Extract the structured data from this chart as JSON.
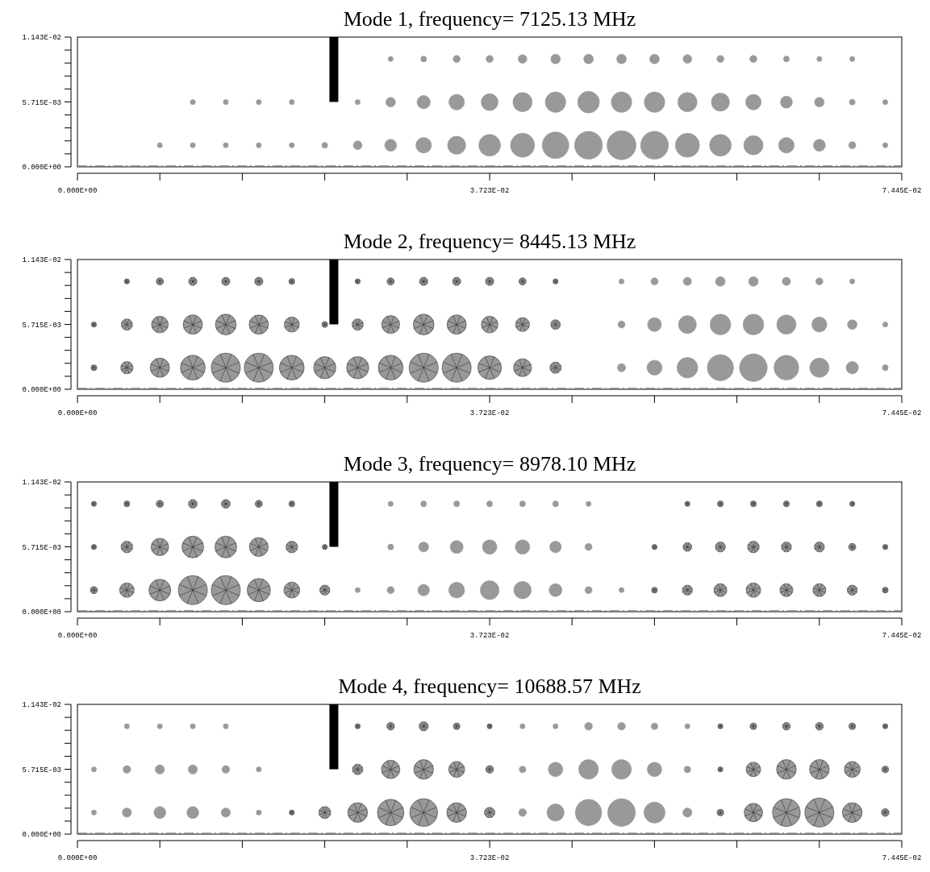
{
  "chart_data": [
    {
      "type": "bubble",
      "title": "Mode 1, frequency= 7125.13 MHz",
      "x": [
        0.007445,
        0.01042,
        0.0134,
        0.01638,
        0.01936,
        0.02234,
        0.02531,
        0.02829,
        0.03127,
        0.03425,
        0.03723,
        0.0402,
        0.04318,
        0.04616,
        0.04914,
        0.05212,
        0.05509,
        0.05807,
        0.06105,
        0.06403,
        0.06701,
        0.06998,
        0.07296
      ],
      "xlim": [
        0,
        0.07445
      ],
      "ylim": [
        0,
        0.01143
      ],
      "xticks": [
        {
          "value": 0,
          "label": "0.000E+00"
        },
        {
          "value": 0.007445,
          "label": null
        },
        {
          "value": 0.01489,
          "label": null
        },
        {
          "value": 0.022335,
          "label": null
        },
        {
          "value": 0.02978,
          "label": null
        },
        {
          "value": 0.03723,
          "label": "3.723E-02"
        },
        {
          "value": 0.04467,
          "label": null
        },
        {
          "value": 0.052115,
          "label": null
        },
        {
          "value": 0.05956,
          "label": null
        },
        {
          "value": 0.067005,
          "label": null
        },
        {
          "value": 0.07445,
          "label": "7.445E-02"
        }
      ],
      "yticks": [
        {
          "value": 0,
          "label": "0.000E+00"
        },
        {
          "value": 0.001143,
          "label": null
        },
        {
          "value": 0.002286,
          "label": null
        },
        {
          "value": 0.003429,
          "label": null
        },
        {
          "value": 0.004572,
          "label": null
        },
        {
          "value": 0.005715,
          "label": "5.715E-03"
        },
        {
          "value": 0.006858,
          "label": null
        },
        {
          "value": 0.008001,
          "label": null
        },
        {
          "value": 0.009144,
          "label": null
        },
        {
          "value": 0.010287,
          "label": null
        },
        {
          "value": 0.01143,
          "label": "1.143E-02"
        }
      ],
      "ref_lines": [
        {
          "axis": "y",
          "value": 0,
          "color": "#808080",
          "line_style": "dashed"
        }
      ],
      "series": [
        {
          "color": "#999999",
          "marker": "circle",
          "values": [
            0.0019,
            0.0019,
            0.0019,
            0.0019,
            0.0019,
            0.0019,
            0.0019,
            0.0019,
            0.0019,
            0.0019,
            0.0019,
            0.0019,
            0.0019,
            0.0019,
            0.0019,
            0.0019,
            0.0019,
            0.0019,
            0.0019,
            0.0019,
            0.0019,
            0.0019,
            0.0019
          ],
          "sizes": [
            0.03,
            0.03,
            0.03,
            0.03,
            0.03,
            0.04,
            0.09,
            0.17,
            0.29,
            0.39,
            0.56,
            0.69,
            0.84,
            0.92,
            1,
            0.92,
            0.69,
            0.56,
            0.44,
            0.29,
            0.17,
            0.06,
            0.03
          ]
        },
        {
          "color": "#999999",
          "marker": "circle",
          "values": [
            null,
            0.0057,
            0.0057,
            0.0057,
            0.0057,
            null,
            0.0057,
            0.0057,
            0.0057,
            0.0057,
            0.0057,
            0.0057,
            0.0057,
            0.0057,
            0.0057,
            0.0057,
            0.0057,
            0.0057,
            0.0057,
            0.0057,
            0.0057,
            0.0057,
            0.0057
          ],
          "sizes": [
            null,
            0.03,
            0.03,
            0.03,
            0.03,
            null,
            0.03,
            0.11,
            0.21,
            0.29,
            0.34,
            0.44,
            0.5,
            0.56,
            0.5,
            0.5,
            0.44,
            0.39,
            0.29,
            0.17,
            0.11,
            0.04,
            0.03
          ]
        },
        {
          "color": "#999999",
          "marker": "circle",
          "values": [
            null,
            null,
            null,
            null,
            null,
            null,
            null,
            0.0095,
            0.0095,
            0.0095,
            0.0095,
            0.0095,
            0.0095,
            0.0095,
            0.0095,
            0.0095,
            0.0095,
            0.0095,
            0.0095,
            0.0095,
            0.0095,
            0.0095,
            null
          ],
          "sizes": [
            null,
            null,
            null,
            null,
            null,
            null,
            null,
            0.03,
            0.04,
            0.06,
            0.06,
            0.09,
            0.11,
            0.11,
            0.11,
            0.11,
            0.09,
            0.06,
            0.06,
            0.04,
            0.03,
            0.03,
            null
          ]
        }
      ]
    },
    {
      "type": "bubble",
      "title": "Mode 2, frequency= 8445.13 MHz",
      "x": [
        0.001489,
        0.004467,
        0.007445,
        0.01042,
        0.0134,
        0.01638,
        0.01936,
        0.02234,
        0.02531,
        0.02829,
        0.03127,
        0.03425,
        0.03723,
        0.0402,
        0.04318,
        0.04914,
        0.05212,
        0.05509,
        0.05807,
        0.06105,
        0.06403,
        0.06701,
        0.06998,
        0.07296
      ],
      "xlim": [
        0,
        0.07445
      ],
      "ylim": [
        0,
        0.01143
      ],
      "xticks": [
        {
          "value": 0,
          "label": "0.000E+00"
        },
        {
          "value": 0.007445,
          "label": null
        },
        {
          "value": 0.01489,
          "label": null
        },
        {
          "value": 0.022335,
          "label": null
        },
        {
          "value": 0.02978,
          "label": null
        },
        {
          "value": 0.03723,
          "label": "3.723E-02"
        },
        {
          "value": 0.04467,
          "label": null
        },
        {
          "value": 0.052115,
          "label": null
        },
        {
          "value": 0.05956,
          "label": null
        },
        {
          "value": 0.067005,
          "label": null
        },
        {
          "value": 0.07445,
          "label": "7.445E-02"
        }
      ],
      "yticks": [
        {
          "value": 0,
          "label": "0.000E+00"
        },
        {
          "value": 0.001143,
          "label": null
        },
        {
          "value": 0.002286,
          "label": null
        },
        {
          "value": 0.003429,
          "label": null
        },
        {
          "value": 0.004572,
          "label": null
        },
        {
          "value": 0.005715,
          "label": "5.715E-03"
        },
        {
          "value": 0.006858,
          "label": null
        },
        {
          "value": 0.008001,
          "label": null
        },
        {
          "value": 0.009144,
          "label": null
        },
        {
          "value": 0.010287,
          "label": null
        },
        {
          "value": 0.01143,
          "label": "1.143E-02"
        }
      ],
      "ref_lines": [
        {
          "axis": "y",
          "value": 0,
          "color": "#808080",
          "line_style": "dashed"
        }
      ],
      "series": [
        {
          "color": "#999999",
          "marker": "cross",
          "values": [
            0.0019,
            0.0019,
            0.0019,
            0.0019,
            0.0019,
            0.0019,
            0.0019,
            0.0019,
            0.0019,
            0.0019,
            0.0019,
            0.0019,
            0.0019,
            0.0019,
            0.0019,
            null,
            null,
            null,
            null,
            null,
            null,
            null,
            null,
            null
          ],
          "sizes": [
            0.04,
            0.18,
            0.44,
            0.73,
            1,
            1,
            0.73,
            0.58,
            0.58,
            0.73,
            1,
            1,
            0.66,
            0.38,
            0.15,
            null,
            null,
            null,
            null,
            null,
            null,
            null,
            null,
            null
          ]
        },
        {
          "color": "#999999",
          "marker": "circle",
          "values": [
            null,
            null,
            null,
            null,
            null,
            null,
            null,
            null,
            null,
            null,
            null,
            null,
            null,
            null,
            null,
            0.0019,
            0.0019,
            0.0019,
            0.0019,
            0.0019,
            0.0019,
            0.0019,
            0.0019,
            0.0019
          ],
          "sizes": [
            null,
            null,
            null,
            null,
            null,
            null,
            null,
            null,
            null,
            null,
            null,
            null,
            null,
            null,
            null,
            0.08,
            0.27,
            0.51,
            0.82,
            0.91,
            0.73,
            0.44,
            0.18,
            0.04
          ]
        },
        {
          "color": "#999999",
          "marker": "cross",
          "values": [
            0.0057,
            0.0057,
            0.0057,
            0.0057,
            0.0057,
            0.0057,
            0.0057,
            0.0057,
            0.0057,
            0.0057,
            0.0057,
            0.0057,
            0.0057,
            0.0057,
            0.0057,
            null,
            null,
            null,
            null,
            null,
            null,
            null,
            null,
            null
          ],
          "sizes": [
            0.03,
            0.15,
            0.33,
            0.44,
            0.51,
            0.44,
            0.27,
            0.04,
            0.15,
            0.38,
            0.51,
            0.44,
            0.33,
            0.23,
            0.11,
            null,
            null,
            null,
            null,
            null,
            null,
            null,
            null,
            null
          ]
        },
        {
          "color": "#999999",
          "marker": "circle",
          "values": [
            null,
            null,
            null,
            null,
            null,
            null,
            null,
            null,
            null,
            null,
            null,
            null,
            null,
            null,
            null,
            0.0057,
            0.0057,
            0.0057,
            0.0057,
            0.0057,
            0.0057,
            0.0057,
            0.0057,
            0.0057
          ],
          "sizes": [
            null,
            null,
            null,
            null,
            null,
            null,
            null,
            null,
            null,
            null,
            null,
            null,
            null,
            null,
            null,
            0.06,
            0.23,
            0.38,
            0.51,
            0.51,
            0.44,
            0.27,
            0.11,
            0.03
          ]
        },
        {
          "color": "#999999",
          "marker": "cross",
          "values": [
            null,
            0.0095,
            0.0095,
            0.0095,
            0.0095,
            0.0095,
            0.0095,
            null,
            0.0095,
            0.0095,
            0.0095,
            0.0095,
            0.0095,
            0.0095,
            0.0095,
            null,
            null,
            null,
            null,
            null,
            null,
            null,
            null,
            null
          ],
          "sizes": [
            null,
            0.03,
            0.06,
            0.08,
            0.08,
            0.08,
            0.04,
            null,
            0.03,
            0.06,
            0.08,
            0.08,
            0.08,
            0.06,
            0.03,
            null,
            null,
            null,
            null,
            null,
            null,
            null,
            null,
            null
          ]
        },
        {
          "color": "#999999",
          "marker": "circle",
          "values": [
            null,
            null,
            null,
            null,
            null,
            null,
            null,
            null,
            null,
            null,
            null,
            null,
            null,
            null,
            null,
            0.0095,
            0.0095,
            0.0095,
            0.0095,
            0.0095,
            0.0095,
            0.0095,
            0.0095,
            null
          ],
          "sizes": [
            null,
            null,
            null,
            null,
            null,
            null,
            null,
            null,
            null,
            null,
            null,
            null,
            null,
            null,
            null,
            0.03,
            0.06,
            0.08,
            0.11,
            0.11,
            0.08,
            0.06,
            0.03,
            null
          ]
        }
      ]
    },
    {
      "type": "bubble",
      "title": "Mode 3, frequency= 8978.10 MHz",
      "x": [
        0.001489,
        0.004467,
        0.007445,
        0.01042,
        0.0134,
        0.01638,
        0.01936,
        0.02234,
        0.02531,
        0.02829,
        0.03127,
        0.03425,
        0.03723,
        0.0402,
        0.04318,
        0.04616,
        0.04914,
        0.05212,
        0.05509,
        0.05807,
        0.06105,
        0.06403,
        0.06701,
        0.06998,
        0.07296
      ],
      "xlim": [
        0,
        0.07445
      ],
      "ylim": [
        0,
        0.01143
      ],
      "xticks": [
        {
          "value": 0,
          "label": "0.000E+00"
        },
        {
          "value": 0.007445,
          "label": null
        },
        {
          "value": 0.01489,
          "label": null
        },
        {
          "value": 0.022335,
          "label": null
        },
        {
          "value": 0.02978,
          "label": null
        },
        {
          "value": 0.03723,
          "label": "3.723E-02"
        },
        {
          "value": 0.04467,
          "label": null
        },
        {
          "value": 0.052115,
          "label": null
        },
        {
          "value": 0.05956,
          "label": null
        },
        {
          "value": 0.067005,
          "label": null
        },
        {
          "value": 0.07445,
          "label": "7.445E-02"
        }
      ],
      "yticks": [
        {
          "value": 0,
          "label": "0.000E+00"
        },
        {
          "value": 0.001143,
          "label": null
        },
        {
          "value": 0.002286,
          "label": null
        },
        {
          "value": 0.003429,
          "label": null
        },
        {
          "value": 0.004572,
          "label": null
        },
        {
          "value": 0.005715,
          "label": "5.715E-03"
        },
        {
          "value": 0.006858,
          "label": null
        },
        {
          "value": 0.008001,
          "label": null
        },
        {
          "value": 0.009144,
          "label": null
        },
        {
          "value": 0.010287,
          "label": null
        },
        {
          "value": 0.01143,
          "label": "1.143E-02"
        }
      ],
      "ref_lines": [
        {
          "axis": "y",
          "value": 0,
          "color": "#808080",
          "line_style": "dashed"
        }
      ],
      "series": [
        {
          "color": "#999999",
          "marker": "cross",
          "values": [
            0.0019,
            0.0019,
            0.0019,
            0.0019,
            0.0019,
            0.0019,
            0.0019,
            0.0019,
            null,
            null,
            null,
            null,
            null,
            null,
            null,
            null,
            null,
            0.0019,
            0.0019,
            0.0019,
            0.0019,
            0.0019,
            0.0019,
            0.0019,
            0.0019
          ],
          "sizes": [
            0.06,
            0.25,
            0.56,
            1,
            1,
            0.64,
            0.3,
            0.12,
            null,
            null,
            null,
            null,
            null,
            null,
            null,
            null,
            null,
            0.04,
            0.12,
            0.2,
            0.25,
            0.2,
            0.2,
            0.12,
            0.04
          ]
        },
        {
          "color": "#999999",
          "marker": "circle",
          "values": [
            null,
            null,
            null,
            null,
            null,
            null,
            null,
            null,
            0.0019,
            0.0019,
            0.0019,
            0.0019,
            0.0019,
            0.0019,
            0.0019,
            0.0019,
            0.0019,
            null,
            null,
            null,
            null,
            null,
            null,
            null,
            null
          ],
          "sizes": [
            null,
            null,
            null,
            null,
            null,
            null,
            null,
            null,
            0.03,
            0.06,
            0.16,
            0.3,
            0.42,
            0.36,
            0.2,
            0.06,
            0.03,
            null,
            null,
            null,
            null,
            null,
            null,
            null,
            null
          ]
        },
        {
          "color": "#999999",
          "marker": "cross",
          "values": [
            0.0057,
            0.0057,
            0.0057,
            0.0057,
            0.0057,
            0.0057,
            0.0057,
            0.0057,
            null,
            null,
            null,
            null,
            null,
            null,
            null,
            null,
            null,
            0.0057,
            0.0057,
            0.0057,
            0.0057,
            0.0057,
            0.0057,
            0.0057,
            0.0057
          ],
          "sizes": [
            0.03,
            0.16,
            0.36,
            0.56,
            0.56,
            0.42,
            0.16,
            0.03,
            null,
            null,
            null,
            null,
            null,
            null,
            null,
            null,
            null,
            0.03,
            0.09,
            0.12,
            0.16,
            0.12,
            0.12,
            0.06,
            0.03
          ]
        },
        {
          "color": "#999999",
          "marker": "circle",
          "values": [
            null,
            null,
            null,
            null,
            null,
            null,
            null,
            null,
            null,
            0.0057,
            0.0057,
            0.0057,
            0.0057,
            0.0057,
            0.0057,
            0.0057,
            null,
            null,
            null,
            null,
            null,
            null,
            null,
            null,
            null
          ],
          "sizes": [
            null,
            null,
            null,
            null,
            null,
            null,
            null,
            null,
            null,
            0.04,
            0.12,
            0.2,
            0.25,
            0.25,
            0.16,
            0.06,
            null,
            null,
            null,
            null,
            null,
            null,
            null,
            null,
            null
          ]
        },
        {
          "color": "#999999",
          "marker": "cross",
          "values": [
            0.0095,
            0.0095,
            0.0095,
            0.0095,
            0.0095,
            0.0095,
            0.0095,
            null,
            null,
            null,
            null,
            null,
            null,
            null,
            null,
            null,
            null,
            null,
            0.0095,
            0.0095,
            0.0095,
            0.0095,
            0.0095,
            0.0095,
            null
          ],
          "sizes": [
            0.03,
            0.04,
            0.06,
            0.09,
            0.09,
            0.06,
            0.04,
            null,
            null,
            null,
            null,
            null,
            null,
            null,
            null,
            null,
            null,
            null,
            0.03,
            0.04,
            0.04,
            0.04,
            0.04,
            0.03,
            null
          ]
        },
        {
          "color": "#999999",
          "marker": "circle",
          "values": [
            null,
            null,
            null,
            null,
            null,
            null,
            null,
            null,
            null,
            0.0095,
            0.0095,
            0.0095,
            0.0095,
            0.0095,
            0.0095,
            0.0095,
            null,
            null,
            null,
            null,
            null,
            null,
            null,
            null,
            null
          ],
          "sizes": [
            null,
            null,
            null,
            null,
            null,
            null,
            null,
            null,
            null,
            0.03,
            0.04,
            0.04,
            0.04,
            0.04,
            0.04,
            0.03,
            null,
            null,
            null,
            null,
            null,
            null,
            null,
            null,
            null
          ]
        }
      ]
    },
    {
      "type": "bubble",
      "title": "Mode 4, frequency= 10688.57 MHz",
      "x": [
        0.001489,
        0.004467,
        0.007445,
        0.01042,
        0.0134,
        0.01638,
        0.01936,
        0.02234,
        0.02531,
        0.02829,
        0.03127,
        0.03425,
        0.03723,
        0.0402,
        0.04318,
        0.04616,
        0.04914,
        0.05212,
        0.05509,
        0.05807,
        0.06105,
        0.06403,
        0.06701,
        0.06998,
        0.07296
      ],
      "xlim": [
        0,
        0.07445
      ],
      "ylim": [
        0,
        0.01143
      ],
      "xticks": [
        {
          "value": 0,
          "label": "0.000E+00"
        },
        {
          "value": 0.007445,
          "label": null
        },
        {
          "value": 0.01489,
          "label": null
        },
        {
          "value": 0.022335,
          "label": null
        },
        {
          "value": 0.02978,
          "label": null
        },
        {
          "value": 0.03723,
          "label": "3.723E-02"
        },
        {
          "value": 0.04467,
          "label": null
        },
        {
          "value": 0.052115,
          "label": null
        },
        {
          "value": 0.05956,
          "label": null
        },
        {
          "value": 0.067005,
          "label": null
        },
        {
          "value": 0.07445,
          "label": "7.445E-02"
        }
      ],
      "yticks": [
        {
          "value": 0,
          "label": "0.000E+00"
        },
        {
          "value": 0.001143,
          "label": null
        },
        {
          "value": 0.002286,
          "label": null
        },
        {
          "value": 0.003429,
          "label": null
        },
        {
          "value": 0.004572,
          "label": null
        },
        {
          "value": 0.005715,
          "label": "5.715E-03"
        },
        {
          "value": 0.006858,
          "label": null
        },
        {
          "value": 0.008001,
          "label": null
        },
        {
          "value": 0.009144,
          "label": null
        },
        {
          "value": 0.010287,
          "label": null
        },
        {
          "value": 0.01143,
          "label": "1.143E-02"
        }
      ],
      "ref_lines": [
        {
          "axis": "y",
          "value": 0,
          "color": "#808080",
          "line_style": "dashed"
        }
      ],
      "series": [
        {
          "color": "#999999",
          "marker": "circle",
          "values": [
            0.0019,
            0.0019,
            0.0019,
            0.0019,
            0.0019,
            0.0019,
            null,
            null,
            null,
            null,
            null,
            null,
            null,
            0.0019,
            0.0019,
            0.0019,
            0.0019,
            0.0019,
            0.0019,
            null,
            null,
            null,
            null,
            null,
            null
          ],
          "sizes": [
            0.03,
            0.1,
            0.17,
            0.17,
            0.1,
            0.03,
            null,
            null,
            null,
            null,
            null,
            null,
            null,
            0.07,
            0.35,
            0.83,
            0.91,
            0.53,
            0.1,
            null,
            null,
            null,
            null,
            null,
            null
          ]
        },
        {
          "color": "#999999",
          "marker": "cross",
          "values": [
            null,
            null,
            null,
            null,
            null,
            null,
            0.0019,
            0.0019,
            0.0019,
            0.0019,
            0.0019,
            0.0019,
            0.0019,
            null,
            null,
            null,
            null,
            null,
            null,
            0.0019,
            0.0019,
            0.0019,
            0.0019,
            0.0019,
            0.0019
          ],
          "sizes": [
            null,
            null,
            null,
            null,
            null,
            null,
            0.03,
            0.17,
            0.46,
            0.83,
            0.91,
            0.46,
            0.13,
            null,
            null,
            null,
            null,
            null,
            null,
            0.05,
            0.4,
            0.91,
            1,
            0.46,
            0.07
          ]
        },
        {
          "color": "#999999",
          "marker": "circle",
          "values": [
            0.0057,
            0.0057,
            0.0057,
            0.0057,
            0.0057,
            0.0057,
            null,
            null,
            null,
            null,
            null,
            null,
            null,
            0.0057,
            0.0057,
            0.0057,
            0.0057,
            0.0057,
            0.0057,
            null,
            null,
            null,
            null,
            null,
            null
          ],
          "sizes": [
            0.03,
            0.07,
            0.1,
            0.1,
            0.07,
            0.03,
            null,
            null,
            null,
            null,
            null,
            null,
            null,
            0.05,
            0.25,
            0.46,
            0.46,
            0.25,
            0.05,
            null,
            null,
            null,
            null,
            null,
            null
          ]
        },
        {
          "color": "#999999",
          "marker": "cross",
          "values": [
            null,
            null,
            null,
            null,
            null,
            null,
            null,
            null,
            0.0057,
            0.0057,
            0.0057,
            0.0057,
            0.0057,
            null,
            null,
            null,
            null,
            null,
            null,
            0.0057,
            0.0057,
            0.0057,
            0.0057,
            0.0057,
            0.0057
          ],
          "sizes": [
            null,
            null,
            null,
            null,
            null,
            null,
            null,
            null,
            0.13,
            0.4,
            0.46,
            0.3,
            0.07,
            null,
            null,
            null,
            null,
            null,
            null,
            0.03,
            0.25,
            0.46,
            0.46,
            0.3,
            0.05
          ]
        },
        {
          "color": "#999999",
          "marker": "circle",
          "values": [
            null,
            0.0095,
            0.0095,
            0.0095,
            0.0095,
            null,
            null,
            null,
            null,
            null,
            null,
            null,
            null,
            0.0095,
            0.0095,
            0.0095,
            0.0095,
            0.0095,
            0.0095,
            null,
            null,
            null,
            null,
            null,
            null
          ],
          "sizes": [
            null,
            0.03,
            0.03,
            0.03,
            0.03,
            null,
            null,
            null,
            null,
            null,
            null,
            null,
            null,
            0.03,
            0.03,
            0.07,
            0.07,
            0.05,
            0.03,
            null,
            null,
            null,
            null,
            null,
            null
          ]
        },
        {
          "color": "#999999",
          "marker": "cross",
          "values": [
            null,
            null,
            null,
            null,
            null,
            null,
            null,
            null,
            0.0095,
            0.0095,
            0.0095,
            0.0095,
            0.0095,
            null,
            null,
            null,
            null,
            null,
            null,
            0.0095,
            0.0095,
            0.0095,
            0.0095,
            0.0095,
            0.0095
          ],
          "sizes": [
            null,
            null,
            null,
            null,
            null,
            null,
            null,
            null,
            0.03,
            0.07,
            0.1,
            0.05,
            0.03,
            null,
            null,
            null,
            null,
            null,
            null,
            0.03,
            0.05,
            0.07,
            0.07,
            0.05,
            0.03
          ]
        }
      ]
    }
  ]
}
